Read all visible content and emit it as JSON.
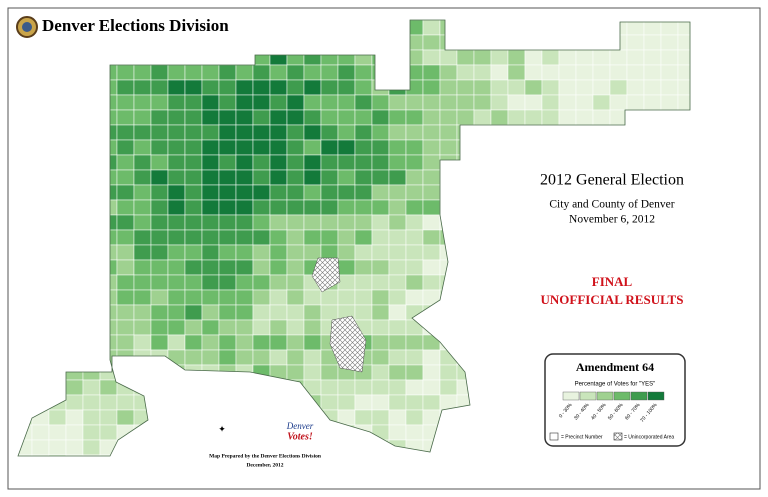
{
  "header": {
    "title": "Denver Elections Division"
  },
  "election": {
    "title": "2012 General Election",
    "jurisdiction": "City and County of Denver",
    "date": "November 6, 2012"
  },
  "status": {
    "line1": "FINAL",
    "line2": "UNOFFICIAL RESULTS"
  },
  "legend": {
    "title": "Amendment 64",
    "subtitle": "Percentage of Votes for \"YES\"",
    "items": [
      {
        "label": "0 - 30%",
        "color": "#e8f3df"
      },
      {
        "label": "30 - 40%",
        "color": "#c9e5bb"
      },
      {
        "label": "40 - 50%",
        "color": "#9fd190"
      },
      {
        "label": "50 - 60%",
        "color": "#6dbb6a"
      },
      {
        "label": "60 - 70%",
        "color": "#3f9c4e"
      },
      {
        "label": "70 - 100%",
        "color": "#137a3a"
      }
    ],
    "precinct_note": "= Precinct Number",
    "unincorporated_note": "= Unincorporated Area"
  },
  "logo": {
    "line1": "Denver",
    "line2": "Votes!"
  },
  "credit": {
    "line1": "Map Prepared by the Denver Elections Division",
    "line2": "December, 2012"
  }
}
